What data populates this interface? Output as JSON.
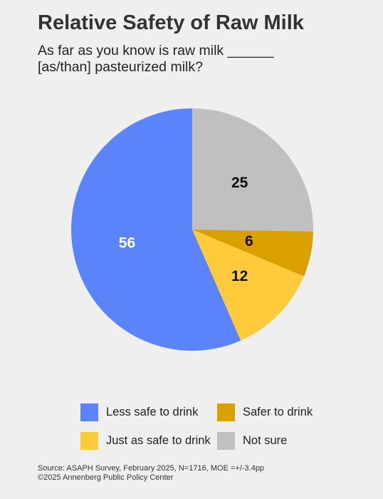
{
  "title": "Relative Safety of Raw Milk",
  "subtitle": "As far as you know is raw milk ______ [as/than] pasteurized milk?",
  "chart_data": {
    "type": "pie",
    "title": "Relative Safety of Raw Milk",
    "slices": [
      {
        "label": "Not sure",
        "value": 25,
        "color": "#c0c0c0",
        "label_color": "#111111"
      },
      {
        "label": "Safer to drink",
        "value": 6,
        "color": "#d9a000",
        "label_color": "#111111"
      },
      {
        "label": "Just as safe to drink",
        "value": 12,
        "color": "#ffcb3d",
        "label_color": "#111111"
      },
      {
        "label": "Less safe to drink",
        "value": 56,
        "color": "#5b84fa",
        "label_color": "#ffffff"
      }
    ],
    "start": "top, clockwise",
    "legend_position": "bottom"
  },
  "legend": [
    {
      "label": "Less safe to drink",
      "color": "#5b84fa"
    },
    {
      "label": "Safer to drink",
      "color": "#d9a000"
    },
    {
      "label": "Just as safe to drink",
      "color": "#ffcb3d"
    },
    {
      "label": "Not sure",
      "color": "#c0c0c0"
    }
  ],
  "source": {
    "line1": "Source: ASAPH Survey, February 2025, N=1716, MOE =+/-3.4pp",
    "line2": "©2025 Annenberg Public Policy Center"
  }
}
